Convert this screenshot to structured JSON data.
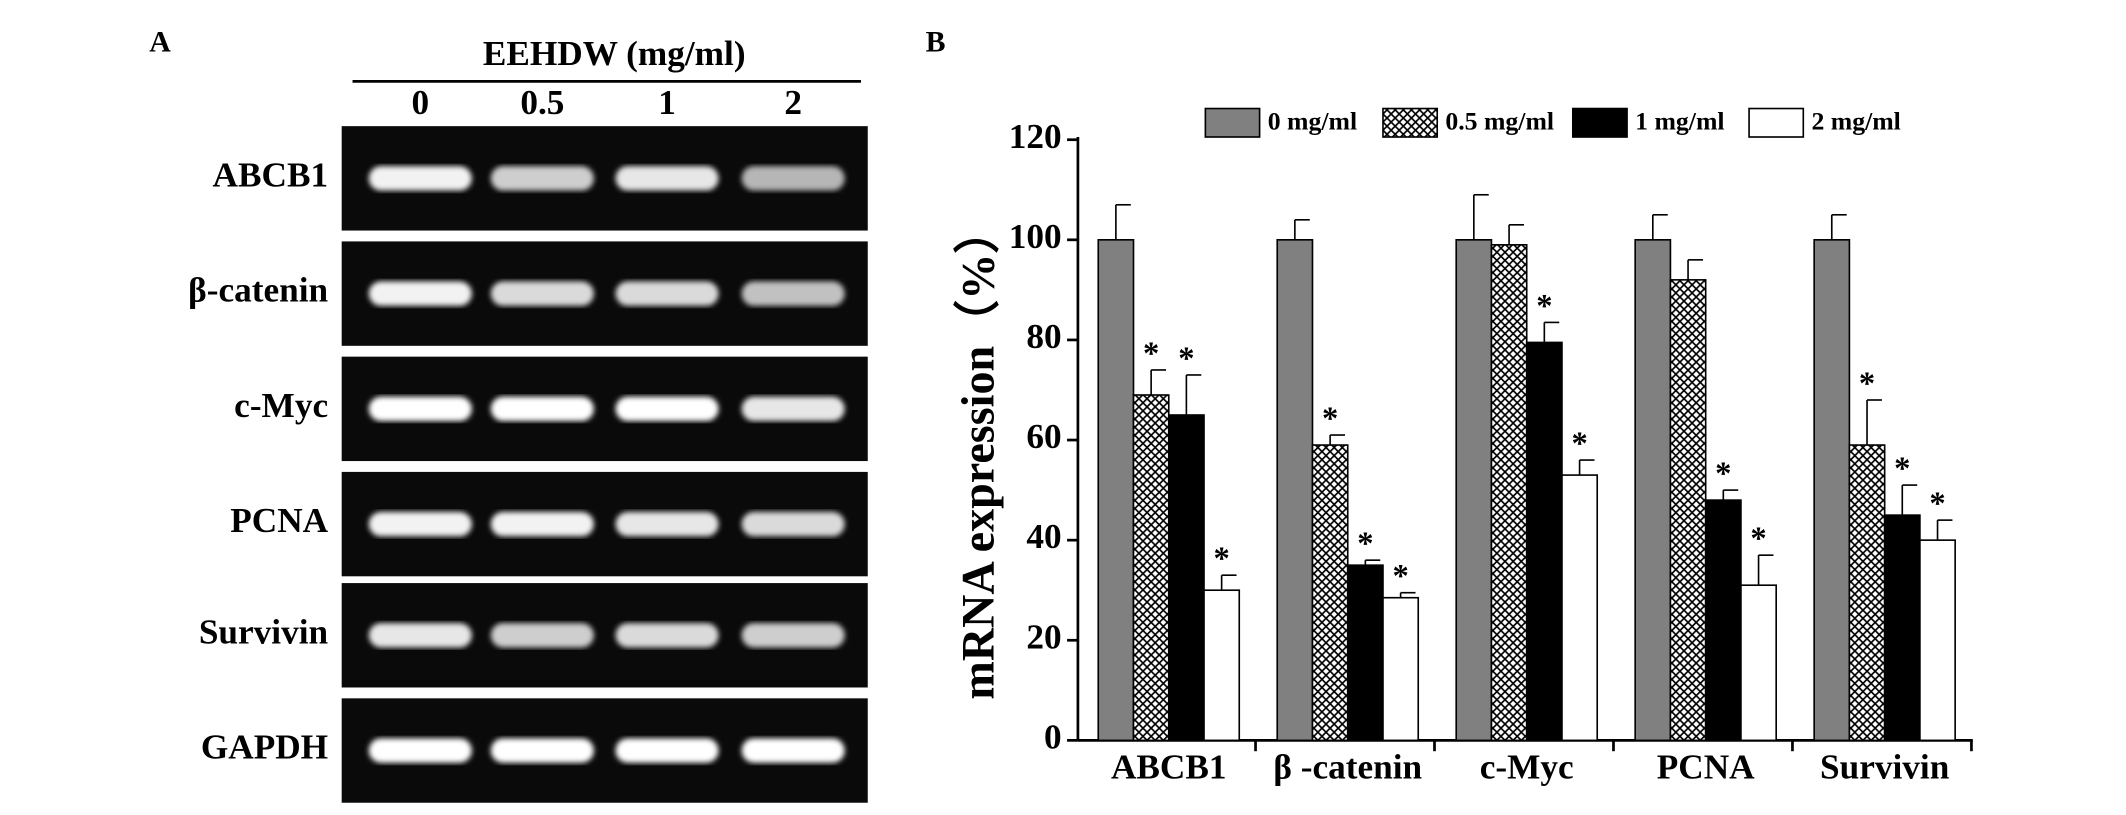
{
  "gel": {
    "panel_label": "A",
    "header": "EEHDW (mg/ml)",
    "lanes": [
      "0",
      "0.5",
      "1",
      "2"
    ],
    "rows": [
      "ABCB1",
      "β-catenin",
      "c-Myc",
      "PCNA",
      "Survivin",
      "GAPDH"
    ]
  },
  "chart_data": {
    "type": "bar",
    "panel_label": "B",
    "y_label": "mRNA expression（%）",
    "categories": [
      "ABCB1",
      "β -catenin",
      "c-Myc",
      "PCNA",
      "Survivin"
    ],
    "series": [
      {
        "name": "0 mg/ml",
        "color": "#808080",
        "values": [
          100,
          100,
          100,
          100,
          100
        ],
        "errors": [
          7,
          4,
          9,
          5,
          5
        ],
        "significance": [
          null,
          null,
          null,
          null,
          null
        ]
      },
      {
        "name": "0.5 mg/ml",
        "color": "crosshatch",
        "values": [
          69,
          59,
          99,
          92,
          59
        ],
        "errors": [
          5,
          2,
          4,
          4,
          9
        ],
        "significance": [
          "*",
          "*",
          null,
          null,
          "*"
        ]
      },
      {
        "name": "1 mg/ml",
        "color": "#000000",
        "values": [
          65,
          35,
          79.5,
          48,
          45
        ],
        "errors": [
          8,
          1,
          4,
          2,
          6
        ],
        "significance": [
          "*",
          "*",
          "*",
          "*",
          "*"
        ]
      },
      {
        "name": "2 mg/ml",
        "color": "#ffffff",
        "values": [
          30,
          28.5,
          53,
          31,
          40
        ],
        "errors": [
          3,
          1,
          3,
          6,
          4
        ],
        "significance": [
          "*",
          "*",
          "*",
          "*",
          "*"
        ]
      }
    ],
    "ylim": [
      0,
      120
    ],
    "yticks": [
      0,
      20,
      40,
      60,
      80,
      100,
      120
    ],
    "legend": "top"
  }
}
